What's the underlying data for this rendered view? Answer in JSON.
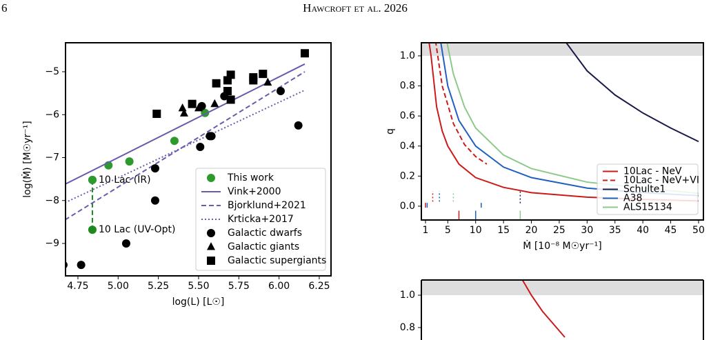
{
  "header": {
    "page": "6",
    "title": "Hawcroft et al. 2026"
  },
  "chart_data": [
    {
      "type": "scatter",
      "x_label": "log(L) [L☉]",
      "y_label": "log(Ṁ) [M☉yr⁻¹]",
      "xlim": [
        4.673,
        6.323
      ],
      "ylim": [
        -9.755,
        -4.325
      ],
      "xticks": [
        4.75,
        {
          "value": 5,
          "label": "5.00"
        },
        5.25,
        {
          "value": 5.5,
          "label": "5.50"
        },
        5.75,
        {
          "value": 6,
          "label": "6.00"
        },
        6.25
      ],
      "yticks": [
        {
          "value": -9,
          "label": "−9"
        },
        {
          "value": -8,
          "label": "−8"
        },
        {
          "value": -7,
          "label": "−7"
        },
        {
          "value": -6,
          "label": "−6"
        },
        {
          "value": -5,
          "label": "−5"
        }
      ],
      "legend": "lower right",
      "annotations": [
        {
          "text": "10 Lac (IR)",
          "x": 4.84,
          "y": -7.52,
          "color": "#2e9a2e"
        },
        {
          "text": "10 Lac (UV-Opt)",
          "x": 4.84,
          "y": -8.68,
          "color": "#2e9a2e"
        }
      ],
      "series": [
        {
          "color": "#1e8a1e",
          "style": "dashed",
          "marker": "circle",
          "x": [
            4.84,
            4.84
          ],
          "values": [
            -7.52,
            -8.68
          ]
        },
        {
          "name": "This work",
          "color": "#2e9a2e",
          "marker": "circle",
          "x": [
            4.84,
            4.94,
            5.07,
            5.35,
            5.54
          ],
          "values": [
            -7.52,
            -7.18,
            -7.09,
            -6.61,
            -5.96
          ]
        },
        {
          "name": "Vink+2000",
          "color": "#6a5aad",
          "style": "solid",
          "x": [
            4.67,
            6.16
          ],
          "values": [
            -7.62,
            -4.82
          ]
        },
        {
          "name": "Bjorklund+2021",
          "color": "#6a5aad",
          "style": "dashed",
          "x": [
            4.67,
            6.16
          ],
          "values": [
            -8.45,
            -5.0
          ]
        },
        {
          "name": "Krticka+2017",
          "color": "#6a5aad",
          "style": "dotted",
          "x": [
            4.67,
            6.16
          ],
          "values": [
            -8.05,
            -5.43
          ]
        },
        {
          "name": "Galactic dwarfs",
          "color": "#000000",
          "marker": "circle",
          "x": [
            4.66,
            4.77,
            5.05,
            5.23,
            5.23,
            5.51,
            5.52,
            5.57,
            5.58,
            5.66,
            6.01,
            6.12
          ],
          "values": [
            -9.5,
            -9.5,
            -9.0,
            -7.25,
            -8.0,
            -6.75,
            -5.8,
            -6.5,
            -6.5,
            -5.57,
            -5.45,
            -6.25
          ]
        },
        {
          "name": "Galactic giants",
          "color": "#000000",
          "marker": "triangle",
          "x": [
            5.4,
            5.41,
            5.5,
            5.6,
            5.93
          ],
          "values": [
            -5.85,
            -5.97,
            -5.85,
            -5.75,
            -5.25
          ]
        },
        {
          "name": "Galactic supergiants",
          "color": "#000000",
          "marker": "square",
          "x": [
            5.24,
            5.46,
            5.61,
            5.68,
            5.68,
            5.7,
            5.7,
            5.84,
            5.84,
            5.9,
            6.16
          ],
          "values": [
            -5.98,
            -5.75,
            -5.27,
            -5.45,
            -5.2,
            -5.07,
            -5.65,
            -5.2,
            -5.13,
            -5.05,
            -4.57
          ]
        }
      ]
    },
    {
      "type": "line",
      "x_label": "Ṁ  [10⁻⁸ M☉yr⁻¹]",
      "y_label": "q",
      "xlim": [
        0.258,
        50.87
      ],
      "ylim": [
        -0.092,
        1.087
      ],
      "xticks": [
        1,
        5,
        10,
        15,
        20,
        25,
        30,
        35,
        40,
        45,
        50
      ],
      "yticks": [
        {
          "value": 0,
          "label": "0.0"
        },
        0.2,
        0.4,
        0.6,
        0.8,
        {
          "value": 1,
          "label": "1.0"
        }
      ],
      "shaded_band": [
        1.0,
        1.087
      ],
      "legend": "lower right",
      "series": [
        {
          "name": "10Lac - NeV",
          "color": "#cc1a1a",
          "style": "solid",
          "x": [
            1.6,
            2,
            3,
            4,
            5,
            7,
            10,
            15,
            20,
            30,
            40,
            50
          ],
          "values": [
            1.1,
            1.0,
            0.66,
            0.5,
            0.4,
            0.28,
            0.19,
            0.125,
            0.09,
            0.06,
            0.045,
            0.035
          ]
        },
        {
          "name": "10Lac - NeV+VI",
          "color": "#cc1a1a",
          "style": "dashed",
          "x": [
            2.8,
            4,
            6,
            8,
            10,
            12
          ],
          "values": [
            1.1,
            0.8,
            0.55,
            0.41,
            0.33,
            0.28
          ]
        },
        {
          "name": "Schulte1",
          "color": "#1a1a4a",
          "style": "solid",
          "x": [
            26,
            30,
            35,
            40,
            45,
            50
          ],
          "values": [
            1.1,
            0.9,
            0.74,
            0.62,
            0.52,
            0.43
          ]
        },
        {
          "name": "A38",
          "color": "#1f5fbf",
          "style": "solid",
          "x": [
            3.7,
            5,
            7,
            10,
            15,
            20,
            30,
            40,
            50
          ],
          "values": [
            1.1,
            0.8,
            0.57,
            0.4,
            0.26,
            0.19,
            0.12,
            0.09,
            0.07
          ]
        },
        {
          "name": "ALS15134",
          "color": "#8cc98c",
          "style": "solid",
          "x": [
            4.8,
            6,
            8,
            10,
            15,
            20,
            30,
            40,
            50
          ],
          "values": [
            1.1,
            0.88,
            0.66,
            0.52,
            0.34,
            0.25,
            0.16,
            0.12,
            0.085
          ]
        }
      ],
      "markers": [
        {
          "x": 7,
          "y": [
            -0.1,
            -0.03
          ],
          "color": "#cc1a1a",
          "style": "solid"
        },
        {
          "x": 10,
          "y": [
            -0.1,
            -0.03
          ],
          "color": "#1f5fbf",
          "style": "solid"
        },
        {
          "x": 18,
          "y": [
            -0.1,
            -0.03
          ],
          "color": "#8cc98c",
          "style": "solid"
        },
        {
          "x": 18,
          "y": [
            0.02,
            0.1
          ],
          "color": "#1a1a4a",
          "style": "dotted"
        },
        {
          "x": 2.3,
          "y": [
            0.03,
            0.1
          ],
          "color": "#cc1a1a",
          "style": "dotted"
        },
        {
          "x": 3.5,
          "y": [
            0.03,
            0.1
          ],
          "color": "#1f5fbf",
          "style": "dotted"
        },
        {
          "x": 6,
          "y": [
            0.03,
            0.1
          ],
          "color": "#8cc98c",
          "style": "dotted"
        },
        {
          "x": 11,
          "y": [
            -0.01,
            0.03
          ],
          "color": "#1f5fbf",
          "style": "dashed"
        },
        {
          "x": 1.3,
          "y": [
            -0.01,
            0.03
          ],
          "color": "#1f5fbf",
          "style": "dashed"
        },
        {
          "x": 1,
          "y": [
            -0.01,
            0.03
          ],
          "color": "#cc1a1a",
          "style": "dashed"
        }
      ]
    },
    {
      "type": "line",
      "xlim": [
        0.258,
        50.87
      ],
      "ylim": [
        0.723,
        1.094
      ],
      "yticks": [
        0.8,
        {
          "value": 1,
          "label": "1.0"
        }
      ],
      "shaded_band": [
        1.0,
        1.094
      ],
      "series": [
        {
          "color": "#cc1a1a",
          "style": "solid",
          "x": [
            18.3,
            20,
            22,
            24,
            26
          ],
          "values": [
            1.1,
            1.0,
            0.9,
            0.82,
            0.74
          ]
        }
      ]
    }
  ]
}
